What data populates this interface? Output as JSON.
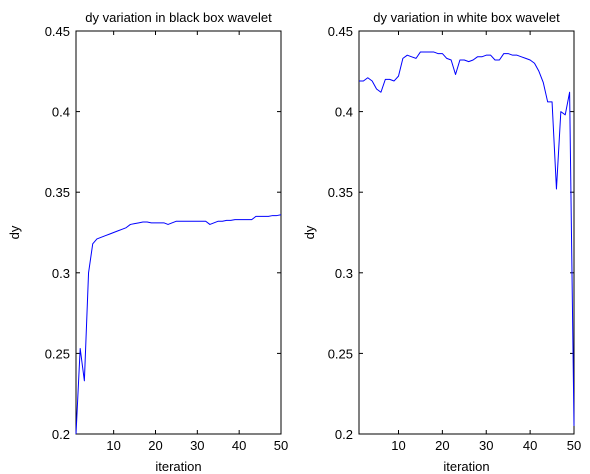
{
  "chart_data": [
    {
      "type": "line",
      "title": "dy variation in black box wavelet",
      "xlabel": "iteration",
      "ylabel": "dy",
      "xlim": [
        1,
        50
      ],
      "ylim": [
        0.2,
        0.45
      ],
      "xticks": [
        10,
        20,
        30,
        40,
        50
      ],
      "yticks": [
        0.2,
        0.25,
        0.3,
        0.35,
        0.4,
        0.45
      ],
      "xtick_labels": [
        "10",
        "20",
        "30",
        "40",
        "50"
      ],
      "ytick_labels": [
        "0.2",
        "0.25",
        "0.3",
        "0.35",
        "0.4",
        "0.45"
      ],
      "line_color": "#0000ff",
      "grid": false,
      "series": [
        {
          "x": [
            1,
            2,
            3,
            4,
            5,
            6,
            7,
            8,
            9,
            10,
            11,
            12,
            13,
            14,
            15,
            16,
            17,
            18,
            19,
            20,
            21,
            22,
            23,
            24,
            25,
            26,
            27,
            28,
            29,
            30,
            31,
            32,
            33,
            34,
            35,
            36,
            37,
            38,
            39,
            40,
            41,
            42,
            43,
            44,
            45,
            46,
            47,
            48,
            49,
            50
          ],
          "y": [
            0.2,
            0.253,
            0.233,
            0.3,
            0.318,
            0.321,
            0.322,
            0.323,
            0.324,
            0.325,
            0.326,
            0.327,
            0.328,
            0.33,
            0.3305,
            0.331,
            0.3315,
            0.3315,
            0.331,
            0.331,
            0.331,
            0.331,
            0.33,
            0.331,
            0.332,
            0.332,
            0.332,
            0.332,
            0.332,
            0.332,
            0.332,
            0.332,
            0.33,
            0.331,
            0.332,
            0.332,
            0.3325,
            0.3325,
            0.333,
            0.333,
            0.333,
            0.333,
            0.333,
            0.335,
            0.335,
            0.335,
            0.335,
            0.3355,
            0.3355,
            0.336
          ]
        }
      ]
    },
    {
      "type": "line",
      "title": "dy variation in white box wavelet",
      "xlabel": "iteration",
      "ylabel": "dy",
      "xlim": [
        1,
        50
      ],
      "ylim": [
        0.2,
        0.45
      ],
      "xticks": [
        10,
        20,
        30,
        40,
        50
      ],
      "yticks": [
        0.2,
        0.25,
        0.3,
        0.35,
        0.4,
        0.45
      ],
      "xtick_labels": [
        "10",
        "20",
        "30",
        "40",
        "50"
      ],
      "ytick_labels": [
        "0.2",
        "0.25",
        "0.3",
        "0.35",
        "0.4",
        "0.45"
      ],
      "line_color": "#0000ff",
      "grid": false,
      "series": [
        {
          "x": [
            1,
            2,
            3,
            4,
            5,
            6,
            7,
            8,
            9,
            10,
            11,
            12,
            13,
            14,
            15,
            16,
            17,
            18,
            19,
            20,
            21,
            22,
            23,
            24,
            25,
            26,
            27,
            28,
            29,
            30,
            31,
            32,
            33,
            34,
            35,
            36,
            37,
            38,
            39,
            40,
            41,
            42,
            43,
            44,
            45,
            46,
            47,
            48,
            49,
            50
          ],
          "y": [
            0.419,
            0.419,
            0.421,
            0.419,
            0.414,
            0.412,
            0.42,
            0.42,
            0.419,
            0.422,
            0.433,
            0.435,
            0.434,
            0.433,
            0.437,
            0.437,
            0.437,
            0.437,
            0.436,
            0.436,
            0.433,
            0.432,
            0.423,
            0.432,
            0.432,
            0.431,
            0.432,
            0.434,
            0.434,
            0.435,
            0.435,
            0.432,
            0.432,
            0.436,
            0.436,
            0.435,
            0.435,
            0.434,
            0.433,
            0.432,
            0.43,
            0.425,
            0.418,
            0.406,
            0.406,
            0.352,
            0.4,
            0.398,
            0.412,
            0.205
          ]
        }
      ]
    }
  ]
}
